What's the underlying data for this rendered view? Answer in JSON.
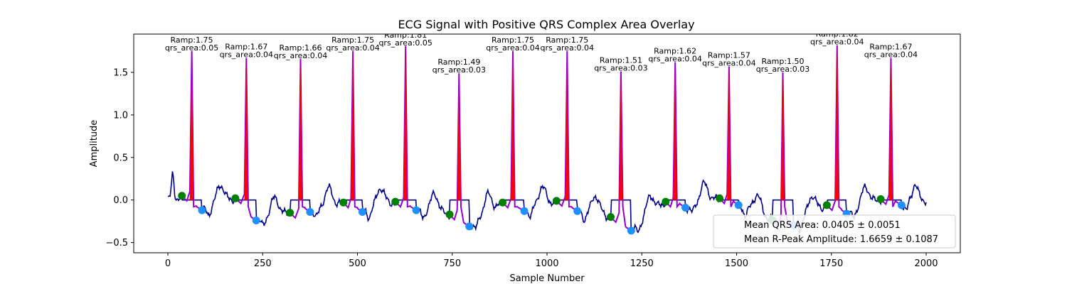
{
  "chart_data": {
    "type": "line",
    "title": "ECG Signal with Positive QRS Complex Area Overlay",
    "xlabel": "Sample Number",
    "ylabel": "Amplitude",
    "xlim": [
      -90,
      2090
    ],
    "ylim": [
      -0.62,
      1.95
    ],
    "xticks": [
      0,
      250,
      500,
      750,
      1000,
      1250,
      1500,
      1750,
      2000
    ],
    "yticks": [
      -0.5,
      0.0,
      0.5,
      1.0,
      1.5
    ],
    "ytick_labels": [
      "−0.5",
      "0.0",
      "0.5",
      "1.0",
      "1.5"
    ],
    "grid": false,
    "colors": {
      "signal": "#00008b",
      "qrs_segment": "#9400d3",
      "qrs_area_fill": "#ff0000",
      "qrs_onset_marker": "#008000",
      "qrs_offset_marker": "#1e90ff"
    },
    "beats": [
      {
        "r_x": 63,
        "r_amp": 1.75,
        "qrs_area": 0.05,
        "onset": [
          37,
          0.05
        ],
        "offset": [
          90,
          -0.12
        ],
        "label_1": "Ramp:1.75",
        "label_2": "qrs_area:0.05"
      },
      {
        "r_x": 207,
        "r_amp": 1.67,
        "qrs_area": 0.04,
        "onset": [
          178,
          0.02
        ],
        "offset": [
          233,
          -0.24
        ],
        "label_1": "Ramp:1.67",
        "label_2": "qrs_area:0.04"
      },
      {
        "r_x": 350,
        "r_amp": 1.66,
        "qrs_area": 0.04,
        "onset": [
          322,
          -0.15
        ],
        "offset": [
          375,
          -0.14
        ],
        "label_1": "Ramp:1.66",
        "label_2": "qrs_area:0.04"
      },
      {
        "r_x": 488,
        "r_amp": 1.75,
        "qrs_area": 0.04,
        "onset": [
          463,
          -0.03
        ],
        "offset": [
          513,
          -0.14
        ],
        "label_1": "Ramp:1.75",
        "label_2": "qrs_area:0.04"
      },
      {
        "r_x": 627,
        "r_amp": 1.81,
        "qrs_area": 0.05,
        "onset": [
          600,
          -0.02
        ],
        "offset": [
          655,
          -0.12
        ],
        "label_1": "Ramp:1.81",
        "label_2": "qrs_area:0.05"
      },
      {
        "r_x": 768,
        "r_amp": 1.49,
        "qrs_area": 0.03,
        "onset": [
          743,
          -0.17
        ],
        "offset": [
          795,
          -0.31
        ],
        "label_1": "Ramp:1.49",
        "label_2": "qrs_area:0.03"
      },
      {
        "r_x": 910,
        "r_amp": 1.75,
        "qrs_area": 0.04,
        "onset": [
          883,
          -0.03
        ],
        "offset": [
          940,
          -0.13
        ],
        "label_1": "Ramp:1.75",
        "label_2": "qrs_area:0.04"
      },
      {
        "r_x": 1053,
        "r_amp": 1.75,
        "qrs_area": 0.04,
        "onset": [
          1025,
          -0.01
        ],
        "offset": [
          1080,
          -0.13
        ],
        "label_1": "Ramp:1.75",
        "label_2": "qrs_area:0.04"
      },
      {
        "r_x": 1195,
        "r_amp": 1.51,
        "qrs_area": 0.03,
        "onset": [
          1168,
          -0.2
        ],
        "offset": [
          1222,
          -0.36
        ],
        "label_1": "Ramp:1.51",
        "label_2": "qrs_area:0.03"
      },
      {
        "r_x": 1338,
        "r_amp": 1.62,
        "qrs_area": 0.04,
        "onset": [
          1313,
          -0.02
        ],
        "offset": [
          1365,
          -0.09
        ],
        "label_1": "Ramp:1.62",
        "label_2": "qrs_area:0.04"
      },
      {
        "r_x": 1480,
        "r_amp": 1.57,
        "qrs_area": 0.04,
        "onset": [
          1455,
          0.02
        ],
        "offset": [
          1505,
          -0.06
        ],
        "label_1": "Ramp:1.57",
        "label_2": "qrs_area:0.04"
      },
      {
        "r_x": 1622,
        "r_amp": 1.5,
        "qrs_area": 0.03,
        "onset": [
          1595,
          -0.24
        ],
        "offset": [
          1650,
          -0.3
        ],
        "label_1": "Ramp:1.50",
        "label_2": "qrs_area:0.03"
      },
      {
        "r_x": 1765,
        "r_amp": 1.82,
        "qrs_area": 0.04,
        "onset": [
          1738,
          -0.06
        ],
        "offset": [
          1790,
          -0.16
        ],
        "label_1": "Ramp:1.82",
        "label_2": "qrs_area:0.04"
      },
      {
        "r_x": 1907,
        "r_amp": 1.67,
        "qrs_area": 0.04,
        "onset": [
          1880,
          0.01
        ],
        "offset": [
          1935,
          -0.06
        ],
        "label_1": "Ramp:1.67",
        "label_2": "qrs_area:0.04"
      }
    ],
    "legend": {
      "placement": "lower-right",
      "entries": [
        "Mean QRS Area: 0.0405 ± 0.0051",
        "Mean R-Peak Amplitude: 1.6659 ± 0.1087"
      ]
    }
  }
}
